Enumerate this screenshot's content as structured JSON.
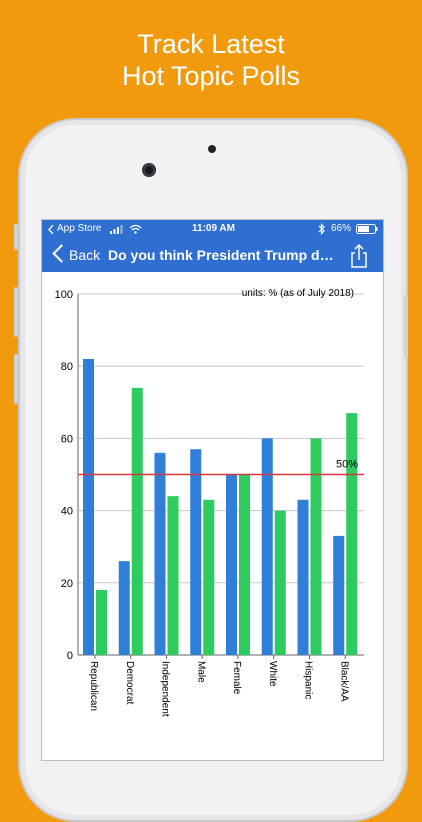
{
  "promo": {
    "line1": "Track Latest",
    "line2": "Hot Topic Polls"
  },
  "status_bar": {
    "carrier": "App Store",
    "time": "11:09 AM",
    "battery": "66%",
    "signal_icon": "signal-bars-icon",
    "wifi_icon": "wifi-icon",
    "bluetooth_icon": "bluetooth-icon",
    "battery_icon": "battery-icon"
  },
  "nav": {
    "back_label": "Back",
    "title": "Do you think President Trump de...",
    "share_icon": "share-icon"
  },
  "colors": {
    "background": "#F29A0E",
    "header_blue": "#2F6FD1",
    "series_blue": "#2F7FD8",
    "series_green": "#2ECC5E",
    "reference_line": "#D9363E"
  },
  "chart_data": {
    "type": "bar",
    "units_note": "units: % (as of July 2018)",
    "categories": [
      "Republican",
      "Democrat",
      "Independent",
      "Male",
      "Female",
      "White",
      "Hispanic",
      "Black/AA"
    ],
    "series": [
      {
        "color": "#2F7FD8",
        "values": [
          82,
          26,
          56,
          57,
          50,
          60,
          43,
          33
        ]
      },
      {
        "color": "#2ECC5E",
        "values": [
          18,
          74,
          44,
          43,
          50,
          40,
          60,
          67
        ]
      }
    ],
    "ylim": [
      0,
      100
    ],
    "yticks": [
      "0",
      "20",
      "40",
      "60",
      "80",
      "100"
    ],
    "reference_line": {
      "value": 50,
      "label": "50%"
    },
    "grid": true
  }
}
